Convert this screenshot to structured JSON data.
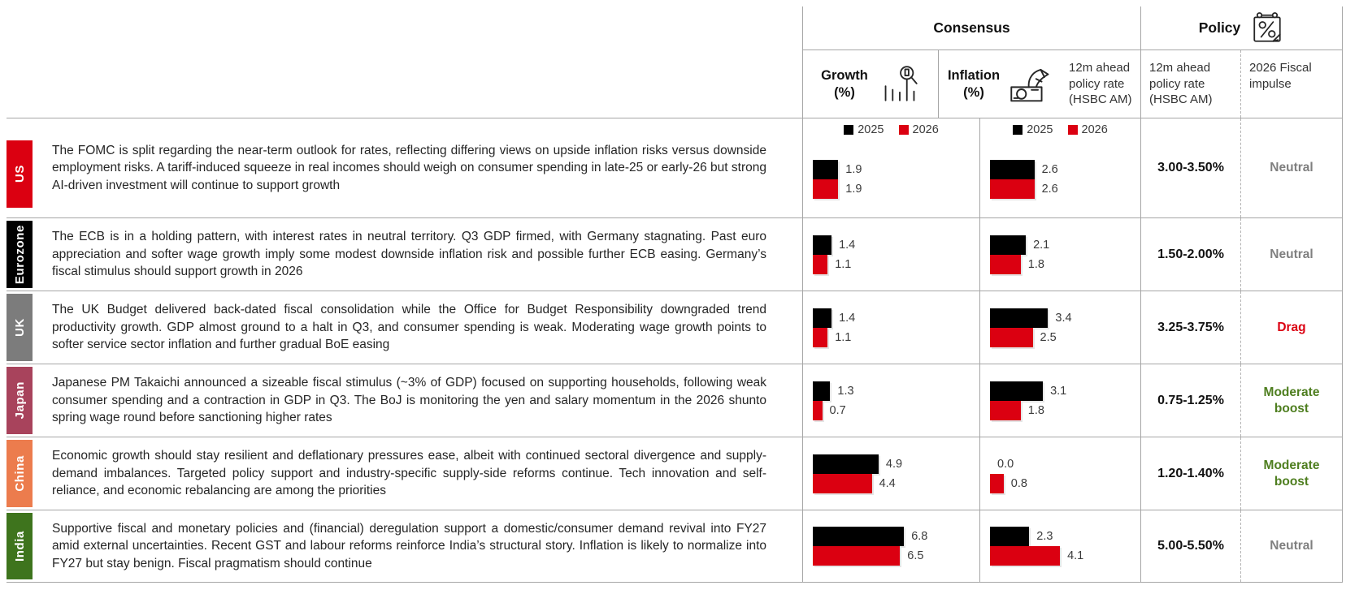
{
  "header": {
    "consensus_label": "Consensus",
    "policy_label": "Policy",
    "growth_label": "Growth",
    "growth_unit": "(%)",
    "inflation_label": "Inflation",
    "inflation_unit": "(%)",
    "policy_rate_label": "12m ahead policy rate (HSBC AM)",
    "fiscal_label": "2026 Fiscal impulse",
    "icons": {
      "growth": "magnifier-bar-chart-icon",
      "inflation": "hand-money-icon",
      "policy": "calendar-percent-icon"
    }
  },
  "legend": {
    "series": [
      {
        "label": "2025",
        "color": "#000000"
      },
      {
        "label": "2026",
        "color": "#DB0011"
      }
    ]
  },
  "chart_data": [
    {
      "type": "bar",
      "title": "Growth (%)",
      "orientation": "horizontal",
      "categories": [
        "US",
        "Eurozone",
        "UK",
        "Japan",
        "China",
        "India"
      ],
      "series": [
        {
          "name": "2025",
          "color": "#000000",
          "values": [
            1.9,
            1.4,
            1.4,
            1.3,
            4.9,
            6.8
          ]
        },
        {
          "name": "2026",
          "color": "#DB0011",
          "values": [
            1.9,
            1.1,
            1.1,
            0.7,
            4.4,
            6.5
          ]
        }
      ],
      "legend_position": "top"
    },
    {
      "type": "bar",
      "title": "Inflation (%)",
      "orientation": "horizontal",
      "categories": [
        "US",
        "Eurozone",
        "UK",
        "Japan",
        "China",
        "India"
      ],
      "series": [
        {
          "name": "2025",
          "color": "#000000",
          "values": [
            2.6,
            2.1,
            3.4,
            3.1,
            0.0,
            2.3
          ]
        },
        {
          "name": "2026",
          "color": "#DB0011",
          "values": [
            2.6,
            1.8,
            2.5,
            1.8,
            0.8,
            4.1
          ]
        }
      ],
      "legend_position": "top"
    }
  ],
  "rows": [
    {
      "region": "US",
      "region_color": "#DB0011",
      "text": "The FOMC is split regarding the near-term outlook for rates, reflecting differing views on upside inflation risks versus downside employment risks. A tariff-induced squeeze in real incomes should weigh on consumer spending in late-25 or early-26 but strong AI-driven investment will continue to support growth",
      "growth": {
        "y2025": "1.9",
        "y2026": "1.9"
      },
      "inflation": {
        "y2025": "2.6",
        "y2026": "2.6"
      },
      "policy_rate": "3.00-3.50%",
      "fiscal_impulse": "Neutral",
      "fiscal_color": "#7f7f7f"
    },
    {
      "region": "Eurozone",
      "region_color": "#000000",
      "text": "The ECB is in a holding pattern, with interest rates in neutral territory. Q3 GDP firmed, with Germany stagnating. Past euro appreciation and softer wage growth imply some modest downside inflation risk and possible further ECB easing. Germany’s fiscal stimulus should support growth in 2026",
      "growth": {
        "y2025": "1.4",
        "y2026": "1.1"
      },
      "inflation": {
        "y2025": "2.1",
        "y2026": "1.8"
      },
      "policy_rate": "1.50-2.00%",
      "fiscal_impulse": "Neutral",
      "fiscal_color": "#7f7f7f"
    },
    {
      "region": "UK",
      "region_color": "#7c7c7c",
      "text": "The UK Budget delivered back-dated fiscal consolidation while the Office for Budget Responsibility downgraded trend productivity growth. GDP almost ground to a halt in Q3, and consumer spending is weak. Moderating wage growth points to softer service sector inflation and further gradual BoE easing",
      "growth": {
        "y2025": "1.4",
        "y2026": "1.1"
      },
      "inflation": {
        "y2025": "3.4",
        "y2026": "2.5"
      },
      "policy_rate": "3.25-3.75%",
      "fiscal_impulse": "Drag",
      "fiscal_color": "#DB0011"
    },
    {
      "region": "Japan",
      "region_color": "#A8435C",
      "text": "Japanese PM Takaichi announced a sizeable fiscal stimulus (~3% of GDP) focused on supporting households, following weak consumer spending and a contraction in GDP in Q3. The BoJ is monitoring the yen and salary momentum in the 2026 shunto spring wage round before sanctioning higher rates",
      "growth": {
        "y2025": "1.3",
        "y2026": "0.7"
      },
      "inflation": {
        "y2025": "3.1",
        "y2026": "1.8"
      },
      "policy_rate": "0.75-1.25%",
      "fiscal_impulse": "Moderate boost",
      "fiscal_color": "#4E7E1F"
    },
    {
      "region": "China",
      "region_color": "#EC7C4D",
      "text": "Economic growth should stay resilient and deflationary pressures ease, albeit with continued sectoral divergence and supply-demand imbalances. Targeted policy support and industry-specific supply-side reforms continue. Tech innovation and self-reliance, and economic rebalancing are among the priorities",
      "growth": {
        "y2025": "4.9",
        "y2026": "4.4"
      },
      "inflation": {
        "y2025": "0.0",
        "y2026": "0.8"
      },
      "policy_rate": "1.20-1.40%",
      "fiscal_impulse": "Moderate boost",
      "fiscal_color": "#4E7E1F"
    },
    {
      "region": "India",
      "region_color": "#3E741D",
      "text": "Supportive fiscal and monetary policies and (financial) deregulation support a domestic/consumer demand revival into FY27 amid external uncertainties. Recent GST and labour reforms reinforce India’s structural story. Inflation is likely to normalize into FY27 but stay benign. Fiscal pragmatism should continue",
      "growth": {
        "y2025": "6.8",
        "y2026": "6.5"
      },
      "inflation": {
        "y2025": "2.3",
        "y2026": "4.1"
      },
      "policy_rate": "5.00-5.50%",
      "fiscal_impulse": "Neutral",
      "fiscal_color": "#7f7f7f"
    }
  ]
}
